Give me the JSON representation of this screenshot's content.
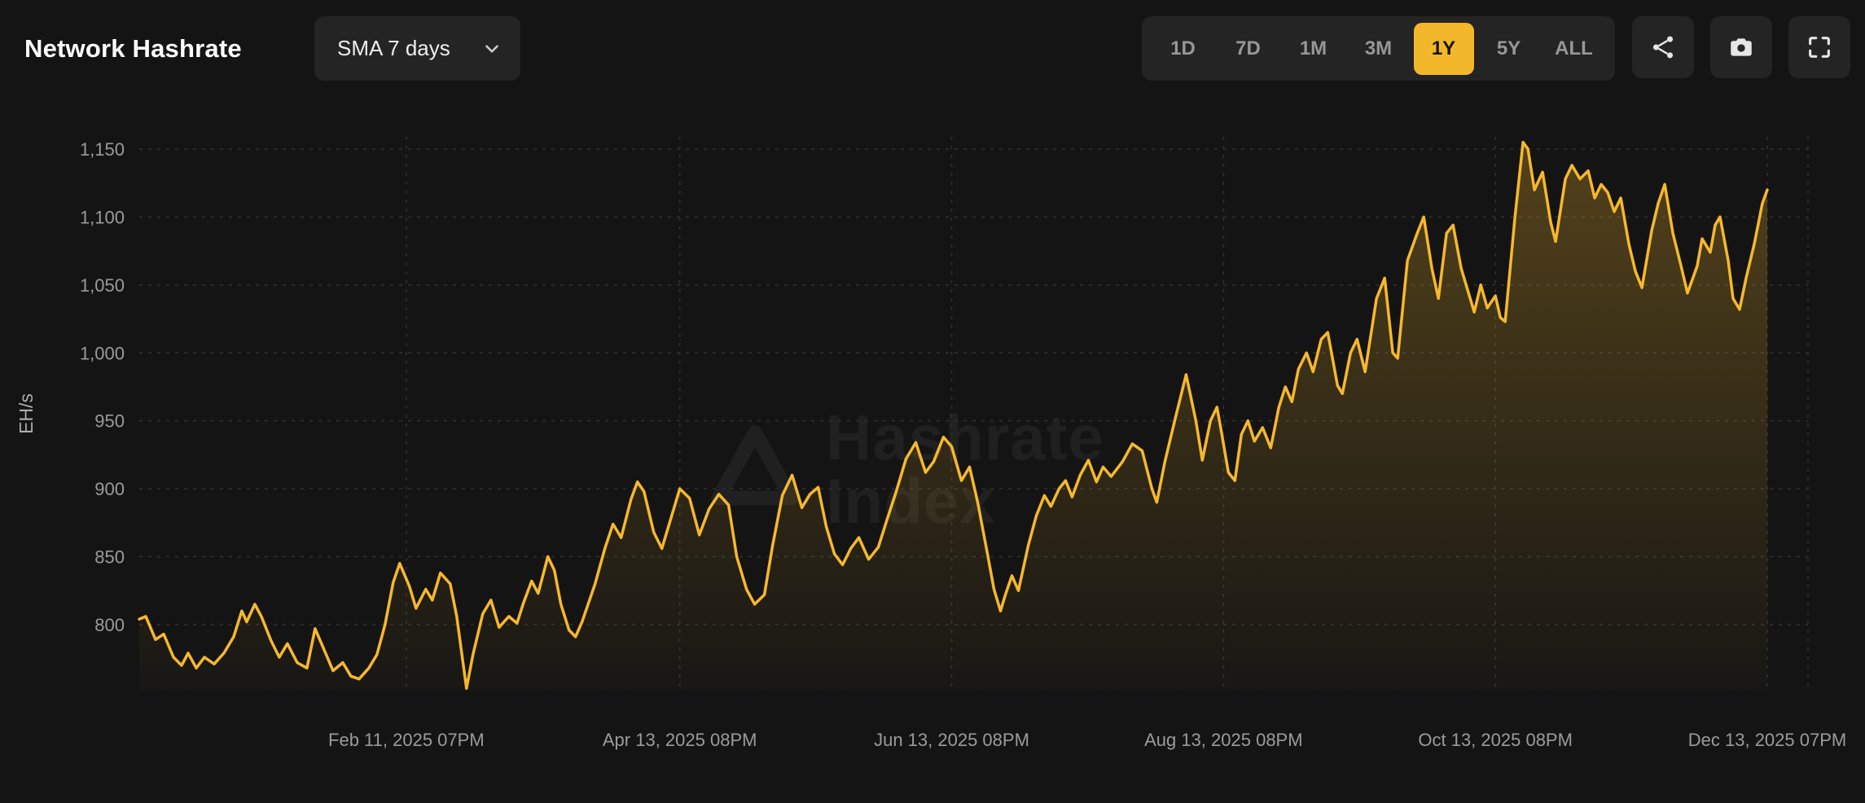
{
  "page": {
    "title": "Network Hashrate"
  },
  "controls": {
    "sma_label": "SMA 7 days",
    "ranges": [
      "1D",
      "7D",
      "1M",
      "3M",
      "1Y",
      "5Y",
      "ALL"
    ],
    "active_range": "1Y",
    "icons": [
      "chevron-down-icon",
      "share-icon",
      "camera-icon",
      "fullscreen-icon"
    ]
  },
  "watermark": {
    "line1": "Hashrate",
    "line2": "Index",
    "icon": "hashrate-index-logo-icon"
  },
  "colors": {
    "background": "#141414",
    "panel": "#242424",
    "accent": "#F3B72B",
    "line": "#F7B82C",
    "grid": "#303030",
    "text_primary": "#FFFFFF",
    "text_muted": "#9B9B9B"
  },
  "chart_data": {
    "type": "line",
    "title": "Network Hashrate",
    "ylabel": "EH/s",
    "series_name": "Network Hashrate (SMA 7 days)",
    "line_color": "#F7B82C",
    "grid": "dashed",
    "legend": "none",
    "x_tick_labels": [
      "Feb 11, 2025 07PM",
      "Apr 13, 2025 08PM",
      "Jun 13, 2025 08PM",
      "Aug 13, 2025 08PM",
      "Oct 13, 2025 08PM",
      "Dec 13, 2025 07PM"
    ],
    "x_tick_positions": [
      0.164,
      0.332,
      0.499,
      0.666,
      0.833,
      1.0
    ],
    "y_ticks": [
      800,
      850,
      900,
      950,
      1000,
      1050,
      1100,
      1150
    ],
    "y_tick_labels": [
      "800",
      "850",
      "900",
      "950",
      "1,000",
      "1,050",
      "1,100",
      "1,150"
    ],
    "ylim": [
      752,
      1159
    ],
    "xlim": [
      0,
      1.025
    ],
    "series": [
      {
        "name": "Network Hashrate (SMA 7 days)",
        "points": [
          [
            0.0,
            804
          ],
          [
            0.004,
            806
          ],
          [
            0.01,
            789
          ],
          [
            0.015,
            793
          ],
          [
            0.021,
            776
          ],
          [
            0.026,
            770
          ],
          [
            0.03,
            779
          ],
          [
            0.035,
            768
          ],
          [
            0.04,
            776
          ],
          [
            0.046,
            771
          ],
          [
            0.052,
            779
          ],
          [
            0.058,
            791
          ],
          [
            0.063,
            810
          ],
          [
            0.066,
            802
          ],
          [
            0.071,
            815
          ],
          [
            0.075,
            806
          ],
          [
            0.081,
            788
          ],
          [
            0.086,
            776
          ],
          [
            0.091,
            786
          ],
          [
            0.097,
            772
          ],
          [
            0.103,
            768
          ],
          [
            0.108,
            797
          ],
          [
            0.113,
            783
          ],
          [
            0.119,
            766
          ],
          [
            0.125,
            772
          ],
          [
            0.13,
            762
          ],
          [
            0.135,
            760
          ],
          [
            0.141,
            768
          ],
          [
            0.146,
            778
          ],
          [
            0.151,
            800
          ],
          [
            0.156,
            831
          ],
          [
            0.16,
            845
          ],
          [
            0.166,
            828
          ],
          [
            0.17,
            812
          ],
          [
            0.176,
            826
          ],
          [
            0.18,
            818
          ],
          [
            0.185,
            838
          ],
          [
            0.191,
            830
          ],
          [
            0.195,
            806
          ],
          [
            0.201,
            753
          ],
          [
            0.205,
            778
          ],
          [
            0.211,
            808
          ],
          [
            0.216,
            818
          ],
          [
            0.221,
            798
          ],
          [
            0.227,
            806
          ],
          [
            0.232,
            801
          ],
          [
            0.236,
            816
          ],
          [
            0.241,
            832
          ],
          [
            0.245,
            823
          ],
          [
            0.251,
            850
          ],
          [
            0.255,
            840
          ],
          [
            0.259,
            815
          ],
          [
            0.264,
            796
          ],
          [
            0.268,
            791
          ],
          [
            0.272,
            802
          ],
          [
            0.28,
            830
          ],
          [
            0.286,
            856
          ],
          [
            0.291,
            874
          ],
          [
            0.296,
            864
          ],
          [
            0.302,
            892
          ],
          [
            0.306,
            905
          ],
          [
            0.31,
            898
          ],
          [
            0.316,
            868
          ],
          [
            0.321,
            856
          ],
          [
            0.327,
            880
          ],
          [
            0.332,
            900
          ],
          [
            0.338,
            893
          ],
          [
            0.344,
            866
          ],
          [
            0.35,
            885
          ],
          [
            0.356,
            896
          ],
          [
            0.362,
            888
          ],
          [
            0.367,
            850
          ],
          [
            0.373,
            826
          ],
          [
            0.378,
            815
          ],
          [
            0.384,
            822
          ],
          [
            0.389,
            858
          ],
          [
            0.395,
            895
          ],
          [
            0.401,
            910
          ],
          [
            0.407,
            886
          ],
          [
            0.412,
            896
          ],
          [
            0.417,
            901
          ],
          [
            0.422,
            872
          ],
          [
            0.427,
            852
          ],
          [
            0.432,
            844
          ],
          [
            0.437,
            856
          ],
          [
            0.442,
            864
          ],
          [
            0.448,
            848
          ],
          [
            0.454,
            857
          ],
          [
            0.459,
            876
          ],
          [
            0.465,
            898
          ],
          [
            0.471,
            922
          ],
          [
            0.477,
            934
          ],
          [
            0.483,
            912
          ],
          [
            0.488,
            920
          ],
          [
            0.494,
            938
          ],
          [
            0.499,
            931
          ],
          [
            0.505,
            906
          ],
          [
            0.51,
            916
          ],
          [
            0.515,
            890
          ],
          [
            0.521,
            852
          ],
          [
            0.525,
            826
          ],
          [
            0.529,
            810
          ],
          [
            0.532,
            822
          ],
          [
            0.536,
            836
          ],
          [
            0.54,
            825
          ],
          [
            0.546,
            858
          ],
          [
            0.551,
            880
          ],
          [
            0.556,
            895
          ],
          [
            0.56,
            887
          ],
          [
            0.565,
            900
          ],
          [
            0.569,
            906
          ],
          [
            0.573,
            894
          ],
          [
            0.578,
            910
          ],
          [
            0.583,
            921
          ],
          [
            0.588,
            905
          ],
          [
            0.592,
            916
          ],
          [
            0.597,
            909
          ],
          [
            0.604,
            920
          ],
          [
            0.61,
            933
          ],
          [
            0.616,
            928
          ],
          [
            0.622,
            900
          ],
          [
            0.625,
            890
          ],
          [
            0.63,
            920
          ],
          [
            0.636,
            950
          ],
          [
            0.643,
            984
          ],
          [
            0.649,
            950
          ],
          [
            0.653,
            921
          ],
          [
            0.658,
            950
          ],
          [
            0.662,
            960
          ],
          [
            0.665,
            940
          ],
          [
            0.669,
            912
          ],
          [
            0.673,
            906
          ],
          [
            0.677,
            940
          ],
          [
            0.681,
            950
          ],
          [
            0.685,
            935
          ],
          [
            0.69,
            945
          ],
          [
            0.695,
            930
          ],
          [
            0.7,
            960
          ],
          [
            0.704,
            975
          ],
          [
            0.708,
            964
          ],
          [
            0.712,
            988
          ],
          [
            0.717,
            1000
          ],
          [
            0.721,
            986
          ],
          [
            0.726,
            1010
          ],
          [
            0.73,
            1015
          ],
          [
            0.736,
            976
          ],
          [
            0.739,
            970
          ],
          [
            0.744,
            1000
          ],
          [
            0.748,
            1010
          ],
          [
            0.753,
            986
          ],
          [
            0.76,
            1040
          ],
          [
            0.765,
            1055
          ],
          [
            0.77,
            1000
          ],
          [
            0.773,
            996
          ],
          [
            0.779,
            1068
          ],
          [
            0.785,
            1088
          ],
          [
            0.789,
            1100
          ],
          [
            0.794,
            1062
          ],
          [
            0.798,
            1040
          ],
          [
            0.803,
            1088
          ],
          [
            0.807,
            1094
          ],
          [
            0.812,
            1062
          ],
          [
            0.816,
            1046
          ],
          [
            0.82,
            1030
          ],
          [
            0.824,
            1050
          ],
          [
            0.828,
            1033
          ],
          [
            0.833,
            1042
          ],
          [
            0.836,
            1026
          ],
          [
            0.839,
            1023
          ],
          [
            0.845,
            1100
          ],
          [
            0.85,
            1155
          ],
          [
            0.853,
            1150
          ],
          [
            0.857,
            1120
          ],
          [
            0.862,
            1133
          ],
          [
            0.867,
            1096
          ],
          [
            0.87,
            1082
          ],
          [
            0.876,
            1128
          ],
          [
            0.88,
            1138
          ],
          [
            0.885,
            1128
          ],
          [
            0.89,
            1134
          ],
          [
            0.894,
            1114
          ],
          [
            0.898,
            1124
          ],
          [
            0.902,
            1118
          ],
          [
            0.906,
            1104
          ],
          [
            0.91,
            1114
          ],
          [
            0.915,
            1080
          ],
          [
            0.919,
            1060
          ],
          [
            0.923,
            1048
          ],
          [
            0.929,
            1090
          ],
          [
            0.933,
            1110
          ],
          [
            0.937,
            1124
          ],
          [
            0.942,
            1088
          ],
          [
            0.947,
            1064
          ],
          [
            0.951,
            1044
          ],
          [
            0.957,
            1064
          ],
          [
            0.96,
            1084
          ],
          [
            0.965,
            1074
          ],
          [
            0.968,
            1094
          ],
          [
            0.971,
            1100
          ],
          [
            0.976,
            1068
          ],
          [
            0.979,
            1040
          ],
          [
            0.983,
            1032
          ],
          [
            0.987,
            1055
          ],
          [
            0.992,
            1080
          ],
          [
            0.997,
            1110
          ],
          [
            1.0,
            1120
          ]
        ]
      }
    ]
  }
}
